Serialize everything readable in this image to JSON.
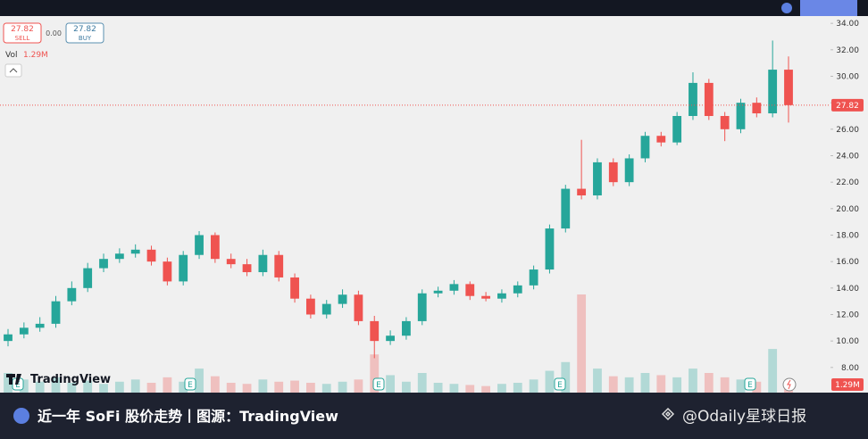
{
  "chart_data": {
    "type": "candlestick",
    "sell_price": 27.82,
    "sell_label": "SELL",
    "spread": "0.00",
    "buy_price": 27.82,
    "buy_label": "BUY",
    "volume_title": "Vol",
    "volume_value": "1.29M",
    "logo": "TradingView",
    "earnings_marker": "E",
    "caption": "近一年 SoFi 股价走势丨图源：TradingView",
    "watermark": "@Odaily星球日报",
    "last_price": 27.82,
    "ylim": [
      6.1,
      34.55
    ],
    "yticks": [
      {
        "value": 8,
        "label": "8.00"
      },
      {
        "value": 10,
        "label": "10.00"
      },
      {
        "value": 12,
        "label": "12.00"
      },
      {
        "value": 14,
        "label": "14.00"
      },
      {
        "value": 16,
        "label": "16.00"
      },
      {
        "value": 18,
        "label": "18.00"
      },
      {
        "value": 20,
        "label": "20.00"
      },
      {
        "value": 22,
        "label": "22.00"
      },
      {
        "value": 24,
        "label": "24.00"
      },
      {
        "value": 26,
        "label": "26.00"
      },
      {
        "value": 28,
        "label": "28.00"
      },
      {
        "value": 30,
        "label": "30.00"
      },
      {
        "value": 32,
        "label": "32.00"
      },
      {
        "value": 34,
        "label": "34.00"
      }
    ],
    "up_color": "#26a69a",
    "down_color": "#ef5350",
    "open": [
      10.0,
      10.5,
      11.0,
      11.3,
      13.0,
      14.0,
      15.5,
      16.2,
      16.6,
      16.9,
      16.0,
      14.5,
      16.5,
      18.0,
      16.2,
      15.8,
      15.2,
      16.5,
      14.8,
      13.2,
      12.0,
      12.8,
      13.5,
      11.5,
      10.0,
      10.4,
      11.5,
      13.6,
      13.8,
      14.3,
      13.4,
      13.2,
      13.6,
      14.2,
      15.4,
      18.5,
      21.5,
      21.0,
      23.5,
      22.0,
      23.8,
      25.5,
      25.0,
      27.0,
      29.5,
      27.0,
      26.0,
      28.0,
      27.2,
      30.5
    ],
    "high": [
      10.9,
      11.4,
      11.8,
      13.4,
      14.5,
      15.9,
      16.6,
      17.0,
      17.3,
      17.2,
      16.3,
      16.8,
      18.3,
      18.2,
      16.6,
      16.2,
      16.9,
      16.8,
      15.1,
      13.5,
      13.1,
      13.9,
      13.8,
      11.9,
      10.8,
      11.8,
      13.9,
      14.1,
      14.6,
      14.5,
      13.7,
      13.9,
      14.5,
      15.7,
      18.8,
      21.8,
      25.2,
      23.8,
      23.8,
      24.1,
      25.8,
      25.8,
      27.3,
      30.3,
      29.8,
      27.3,
      28.3,
      28.4,
      32.7,
      31.5
    ],
    "low": [
      9.6,
      10.2,
      10.7,
      11.0,
      12.7,
      13.7,
      15.2,
      15.9,
      16.3,
      15.7,
      14.2,
      14.2,
      16.2,
      15.9,
      15.5,
      14.9,
      14.9,
      14.5,
      12.9,
      11.7,
      11.7,
      12.5,
      11.2,
      8.7,
      9.7,
      10.1,
      11.2,
      13.3,
      13.5,
      13.1,
      13.0,
      12.9,
      13.3,
      13.9,
      15.1,
      18.2,
      20.7,
      20.7,
      21.7,
      21.7,
      23.5,
      24.7,
      24.8,
      26.7,
      26.7,
      25.1,
      25.7,
      26.9,
      26.9,
      26.5
    ],
    "close": [
      10.5,
      11.0,
      11.3,
      13.0,
      14.0,
      15.5,
      16.2,
      16.6,
      16.9,
      16.0,
      14.5,
      16.5,
      18.0,
      16.2,
      15.8,
      15.2,
      16.5,
      14.8,
      13.2,
      12.0,
      12.8,
      13.5,
      11.5,
      10.0,
      10.4,
      11.5,
      13.6,
      13.8,
      14.3,
      13.4,
      13.2,
      13.6,
      14.2,
      15.4,
      18.5,
      21.5,
      21.0,
      23.5,
      22.0,
      23.8,
      25.5,
      25.0,
      27.0,
      29.5,
      27.0,
      26.0,
      28.0,
      27.2,
      30.5,
      27.82
    ],
    "volume": [
      18,
      12,
      10,
      14,
      9,
      11,
      8,
      10,
      12,
      9,
      14,
      10,
      22,
      15,
      9,
      8,
      12,
      10,
      11,
      9,
      8,
      10,
      12,
      35,
      16,
      10,
      18,
      9,
      8,
      7,
      6,
      8,
      9,
      12,
      20,
      28,
      90,
      22,
      15,
      14,
      18,
      16,
      14,
      22,
      18,
      14,
      12,
      10,
      40,
      8
    ]
  }
}
